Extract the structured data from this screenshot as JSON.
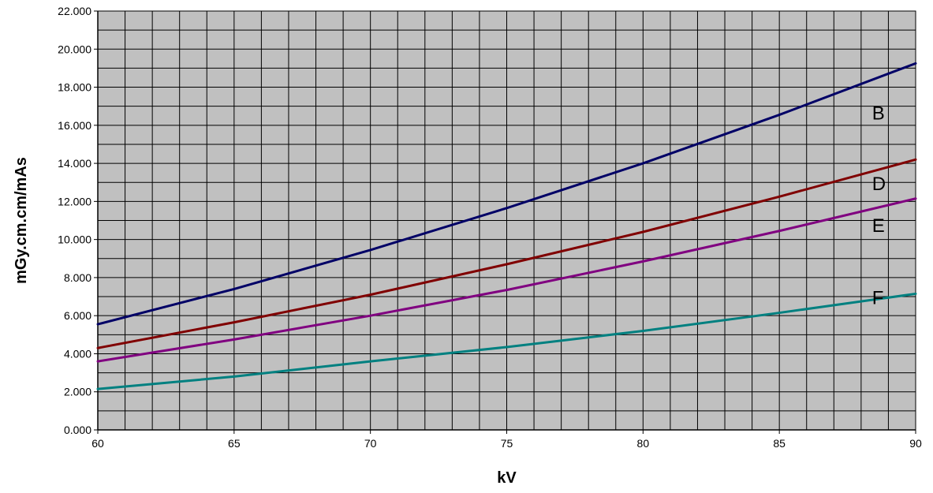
{
  "chart_data": {
    "type": "line",
    "title": "",
    "xlabel": "kV",
    "ylabel": "mGy.cm.cm/mAs",
    "xlim": [
      60,
      90
    ],
    "ylim": [
      0,
      22
    ],
    "x_ticks": [
      60,
      65,
      70,
      75,
      80,
      85,
      90
    ],
    "x_tick_labels": [
      "60",
      "65",
      "70",
      "75",
      "80",
      "85",
      "90"
    ],
    "x_minor_step": 1,
    "y_ticks": [
      0,
      2,
      4,
      6,
      8,
      10,
      12,
      14,
      16,
      18,
      20,
      22
    ],
    "y_tick_labels": [
      "0.000",
      "2.000",
      "4.000",
      "6.000",
      "8.000",
      "10.000",
      "12.000",
      "14.000",
      "16.000",
      "18.000",
      "20.000",
      "22.000"
    ],
    "y_minor_step": 1,
    "grid": true,
    "plot_background": "#c0c0c0",
    "grid_color": "#000000",
    "x": [
      60,
      65,
      70,
      75,
      80,
      85,
      90
    ],
    "series": [
      {
        "name": "B",
        "color": "#000066",
        "values": [
          5.55,
          7.4,
          9.45,
          11.65,
          14.0,
          16.55,
          19.25
        ]
      },
      {
        "name": "D",
        "color": "#800000",
        "values": [
          4.3,
          5.65,
          7.1,
          8.7,
          10.4,
          12.25,
          14.2
        ]
      },
      {
        "name": "E",
        "color": "#800080",
        "values": [
          3.6,
          4.75,
          6.0,
          7.35,
          8.85,
          10.45,
          12.15
        ]
      },
      {
        "name": "F",
        "color": "#008080",
        "values": [
          2.15,
          2.8,
          3.6,
          4.35,
          5.2,
          6.15,
          7.15
        ]
      }
    ],
    "series_labels": [
      {
        "text": "B",
        "x": 88.4,
        "y": 16.3
      },
      {
        "text": "D",
        "x": 88.4,
        "y": 12.6
      },
      {
        "text": "E",
        "x": 88.4,
        "y": 10.4
      },
      {
        "text": "F",
        "x": 88.4,
        "y": 6.6
      }
    ]
  }
}
